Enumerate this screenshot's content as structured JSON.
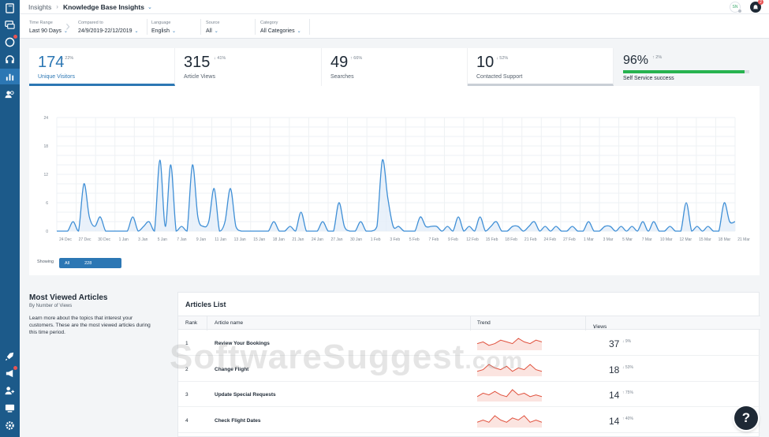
{
  "header": {
    "breadcrumb_root": "Insights",
    "page_title": "Knowledge Base Insights",
    "user_initials": "SN",
    "notifications": "2"
  },
  "filters": {
    "time_range": {
      "label": "Time Range",
      "value": "Last 90 Days"
    },
    "compared_to": {
      "label": "Compared to",
      "value": "24/9/2019-22/12/2019"
    },
    "language": {
      "label": "Language",
      "value": "English"
    },
    "source": {
      "label": "Source",
      "value": "All"
    },
    "category": {
      "label": "Category",
      "value": "All Categories"
    }
  },
  "stats": [
    {
      "value": "174",
      "delta": "↓ 22%",
      "label": "Unique Visitors"
    },
    {
      "value": "315",
      "delta": "↓ 41%",
      "label": "Article Views"
    },
    {
      "value": "49",
      "delta": "↑ 66%",
      "label": "Searches"
    },
    {
      "value": "10",
      "delta": "↓ 52%",
      "label": "Contacted Support"
    }
  ],
  "self_service": {
    "value": "96%",
    "delta": "↑ 2%",
    "label": "Self Service success",
    "progress": 0.96
  },
  "chart_data": {
    "type": "area",
    "y_ticks": [
      "24",
      "18",
      "12",
      "6",
      "0"
    ],
    "ylim": [
      0,
      24
    ],
    "x_labels": [
      "24 Dec",
      "27 Dec",
      "30 Dec",
      "1 Jan",
      "3 Jan",
      "5 Jan",
      "7 Jan",
      "9 Jan",
      "11 Jan",
      "13 Jan",
      "15 Jan",
      "18 Jan",
      "21 Jan",
      "24 Jan",
      "27 Jan",
      "30 Jan",
      "1 Feb",
      "3 Feb",
      "5 Feb",
      "7 Feb",
      "9 Feb",
      "12 Feb",
      "15 Feb",
      "18 Feb",
      "21 Feb",
      "24 Feb",
      "27 Feb",
      "1 Mar",
      "3 Mar",
      "5 Mar",
      "7 Mar",
      "10 Mar",
      "12 Mar",
      "15 Mar",
      "18 Mar",
      "21 Mar"
    ],
    "values": [
      0,
      0,
      0,
      2,
      0,
      10,
      3,
      1,
      3,
      0,
      0,
      0,
      0,
      0,
      3,
      0,
      1,
      2,
      0,
      15,
      1,
      14,
      0,
      1,
      0,
      14,
      3,
      1,
      2,
      9,
      0,
      2,
      9,
      1,
      0,
      0,
      0,
      0,
      0,
      0,
      2,
      0,
      0,
      1,
      0,
      4,
      0,
      0,
      0,
      2,
      0,
      0,
      6,
      1,
      0,
      0,
      2,
      0,
      0,
      1,
      15,
      7,
      1,
      1,
      0,
      0,
      0,
      3,
      1,
      1,
      1,
      0,
      1,
      0,
      3,
      0,
      1,
      0,
      3,
      0,
      1,
      2,
      0,
      0,
      1,
      1,
      0,
      1,
      2,
      0,
      1,
      0,
      1,
      0,
      0,
      1,
      0,
      0,
      2,
      0,
      0,
      1,
      1,
      0,
      1,
      0,
      1,
      0,
      2,
      0,
      2,
      0,
      0,
      1,
      0,
      0,
      6,
      0,
      1,
      0,
      1,
      0,
      0,
      6,
      2,
      2
    ],
    "grid": true
  },
  "showing": {
    "label": "Showing",
    "option": "All",
    "value": "228"
  },
  "mva": {
    "title": "Most Viewed Articles",
    "subtitle": "By Number of Views",
    "description": "Learn more about the topics that interest your customers. These are the most viewed articles during this time period."
  },
  "articles": {
    "title": "Articles List",
    "columns": {
      "rank": "Rank",
      "name": "Article name",
      "trend": "Trend",
      "views": "Views"
    },
    "rows": [
      {
        "rank": "1",
        "name": "Review Your Bookings",
        "views": "37",
        "delta": "↓ 9%",
        "trend": [
          2,
          3,
          1,
          2,
          4,
          3,
          2,
          5,
          3,
          2,
          4,
          3
        ]
      },
      {
        "rank": "2",
        "name": "Change Flight",
        "views": "18",
        "delta": "↓ 53%",
        "trend": [
          1,
          2,
          5,
          3,
          2,
          4,
          1,
          3,
          2,
          5,
          2,
          1
        ]
      },
      {
        "rank": "3",
        "name": "Update Special Requests",
        "views": "14",
        "delta": "↑ 75%",
        "trend": [
          1,
          3,
          2,
          4,
          2,
          1,
          5,
          2,
          3,
          1,
          2,
          1
        ]
      },
      {
        "rank": "4",
        "name": "Check Flight Dates",
        "views": "14",
        "delta": "↑ 40%",
        "trend": [
          1,
          2,
          1,
          4,
          2,
          1,
          3,
          2,
          4,
          1,
          2,
          1
        ]
      }
    ]
  },
  "watermark": {
    "brand": "SoftwareSuggest",
    "domain": ".com"
  },
  "colors": {
    "rail": "#1c5a8a",
    "accent": "#2c77b4",
    "success": "#27b34f",
    "trend": "#e0503c"
  }
}
